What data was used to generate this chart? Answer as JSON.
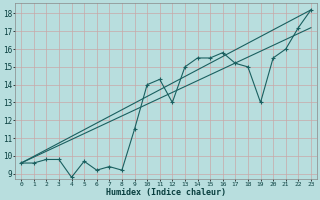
{
  "xlabel": "Humidex (Indice chaleur)",
  "bg_color": "#b8dede",
  "grid_color": "#c8a8a8",
  "line_color": "#1a6060",
  "xlim": [
    -0.5,
    23.5
  ],
  "ylim": [
    8.7,
    18.6
  ],
  "xticks": [
    0,
    1,
    2,
    3,
    4,
    5,
    6,
    7,
    8,
    9,
    10,
    11,
    12,
    13,
    14,
    15,
    16,
    17,
    18,
    19,
    20,
    21,
    22,
    23
  ],
  "yticks": [
    9,
    10,
    11,
    12,
    13,
    14,
    15,
    16,
    17,
    18
  ],
  "line1_x": [
    0,
    1,
    2,
    3,
    4,
    5,
    6,
    7,
    8,
    9,
    10,
    11,
    12,
    13,
    14,
    15,
    16,
    17,
    18,
    19,
    20,
    21,
    22,
    23
  ],
  "line1_y": [
    9.6,
    9.6,
    9.8,
    9.8,
    8.8,
    9.7,
    9.2,
    9.4,
    9.2,
    11.5,
    14.0,
    14.3,
    13.0,
    15.0,
    15.5,
    15.5,
    15.8,
    15.2,
    15.0,
    13.0,
    15.5,
    16.0,
    17.2,
    18.2
  ],
  "line2_x": [
    0,
    23
  ],
  "line2_y": [
    9.6,
    18.2
  ],
  "line3_x": [
    0,
    23
  ],
  "line3_y": [
    9.6,
    17.2
  ]
}
